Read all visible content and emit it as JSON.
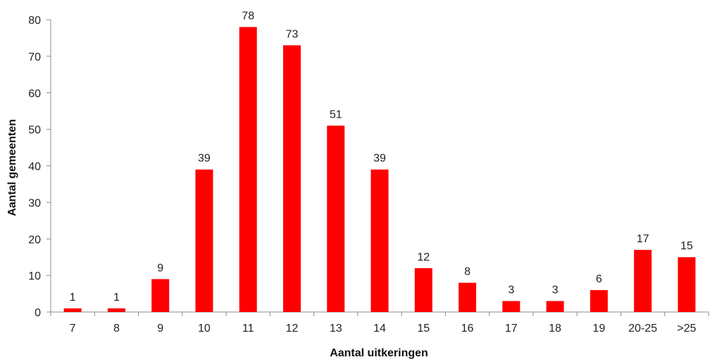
{
  "chart_data": {
    "type": "bar",
    "categories": [
      "7",
      "8",
      "9",
      "10",
      "11",
      "12",
      "13",
      "14",
      "15",
      "16",
      "17",
      "18",
      "19",
      "20-25",
      ">25"
    ],
    "values": [
      1,
      1,
      9,
      39,
      78,
      73,
      51,
      39,
      12,
      8,
      3,
      3,
      6,
      17,
      15
    ],
    "xlabel": "Aantal uitkeringen",
    "ylabel": "Aantal gemeenten",
    "ylim": [
      0,
      80
    ],
    "yticks": [
      0,
      10,
      20,
      30,
      40,
      50,
      60,
      70,
      80
    ],
    "bar_color": "#ff0000",
    "grid": false,
    "legend": "none"
  }
}
